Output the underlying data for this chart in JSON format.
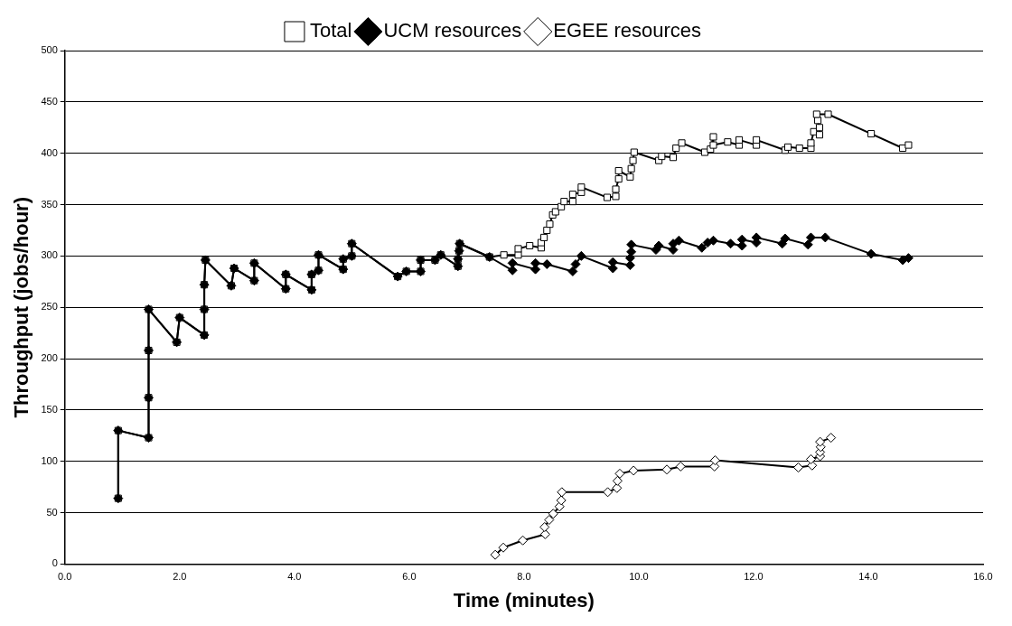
{
  "chart_data": {
    "type": "line",
    "xlabel": "Time (minutes)",
    "ylabel": "Throughput (jobs/hour)",
    "xlim": [
      0,
      16
    ],
    "xticks": [
      {
        "value": 0,
        "label": "0.0"
      },
      {
        "value": 2,
        "label": "2.0"
      },
      {
        "value": 4,
        "label": "4.0"
      },
      {
        "value": 6,
        "label": "6.0"
      },
      {
        "value": 8,
        "label": "8.0"
      },
      {
        "value": 10,
        "label": "10.0"
      },
      {
        "value": 12,
        "label": "12.0"
      },
      {
        "value": 14,
        "label": "14.0"
      },
      {
        "value": 16,
        "label": "16.0"
      }
    ],
    "ylim": [
      0,
      500
    ],
    "yticks": [
      0,
      50,
      100,
      150,
      200,
      250,
      300,
      350,
      400,
      450,
      500
    ],
    "grid": "y",
    "legend": "top",
    "line_style": "solid",
    "series": [
      {
        "name": "Total",
        "color": "#000000",
        "marker": "square",
        "x": [
          0.93,
          0.93,
          1.46,
          1.46,
          1.46,
          1.46,
          1.95,
          2.0,
          2.43,
          2.43,
          2.43,
          2.45,
          2.9,
          2.95,
          3.3,
          3.3,
          3.85,
          3.85,
          4.3,
          4.3,
          4.42,
          4.42,
          4.85,
          4.85,
          5.0,
          5.0,
          5.8,
          5.95,
          6.2,
          6.2,
          6.45,
          6.55,
          6.85,
          6.85,
          6.87,
          6.88,
          7.4,
          7.65,
          7.9,
          7.9,
          8.1,
          8.3,
          8.3,
          8.35,
          8.4,
          8.45,
          8.5,
          8.55,
          8.65,
          8.7,
          8.85,
          8.85,
          9.0,
          9.0,
          9.45,
          9.6,
          9.6,
          9.65,
          9.65,
          9.85,
          9.87,
          9.9,
          9.92,
          10.35,
          10.4,
          10.6,
          10.65,
          10.75,
          11.15,
          11.25,
          11.3,
          11.3,
          11.55,
          11.75,
          11.75,
          12.05,
          12.05,
          12.55,
          12.6,
          12.8,
          13.0,
          13.0,
          13.05,
          13.15,
          13.15,
          13.12,
          13.1,
          13.3,
          14.05,
          14.6,
          14.7
        ],
        "values": [
          64,
          130,
          123,
          162,
          208,
          248,
          216,
          240,
          223,
          248,
          272,
          296,
          271,
          288,
          276,
          293,
          268,
          282,
          267,
          282,
          286,
          301,
          287,
          297,
          300,
          312,
          280,
          285,
          285,
          296,
          296,
          301,
          290,
          297,
          305,
          312,
          299,
          301,
          301,
          307,
          310,
          308,
          313,
          318,
          325,
          331,
          340,
          343,
          348,
          353,
          353,
          360,
          362,
          367,
          357,
          358,
          365,
          375,
          383,
          377,
          385,
          393,
          401,
          393,
          397,
          396,
          405,
          410,
          401,
          404,
          416,
          408,
          411,
          408,
          413,
          408,
          413,
          403,
          406,
          405,
          405,
          410,
          421,
          418,
          425,
          432,
          438,
          438,
          419,
          405,
          408
        ]
      },
      {
        "name": "UCM resources",
        "color": "#000000",
        "marker": "diamond",
        "x": [
          0.93,
          0.93,
          1.46,
          1.46,
          1.46,
          1.46,
          1.95,
          2.0,
          2.43,
          2.43,
          2.43,
          2.45,
          2.9,
          2.95,
          3.3,
          3.3,
          3.85,
          3.85,
          4.3,
          4.3,
          4.42,
          4.42,
          4.85,
          4.85,
          5.0,
          5.0,
          5.8,
          5.95,
          6.2,
          6.2,
          6.45,
          6.55,
          6.85,
          6.85,
          6.87,
          6.88,
          7.4,
          7.8,
          7.8,
          8.2,
          8.2,
          8.4,
          8.85,
          8.9,
          9.0,
          9.55,
          9.55,
          9.85,
          9.85,
          9.87,
          9.87,
          10.3,
          10.35,
          10.6,
          10.6,
          10.7,
          11.1,
          11.2,
          11.3,
          11.6,
          11.8,
          11.8,
          12.05,
          12.05,
          12.5,
          12.55,
          12.95,
          13.0,
          13.25,
          14.05,
          14.6,
          14.7
        ],
        "values": [
          64,
          130,
          123,
          162,
          208,
          248,
          216,
          240,
          223,
          248,
          272,
          296,
          271,
          288,
          276,
          293,
          268,
          282,
          267,
          282,
          286,
          301,
          287,
          297,
          300,
          312,
          280,
          285,
          285,
          296,
          296,
          301,
          290,
          297,
          305,
          312,
          299,
          286,
          293,
          287,
          293,
          292,
          285,
          292,
          300,
          288,
          294,
          291,
          298,
          304,
          311,
          306,
          310,
          306,
          312,
          315,
          308,
          313,
          315,
          312,
          310,
          316,
          313,
          318,
          312,
          317,
          311,
          318,
          318,
          302,
          296,
          298
        ]
      },
      {
        "name": "EGEE resources",
        "color": "#000000",
        "marker": "diamond-open",
        "x": [
          7.5,
          7.64,
          7.98,
          8.37,
          8.36,
          8.44,
          8.51,
          8.62,
          8.65,
          8.66,
          9.46,
          9.62,
          9.63,
          9.67,
          9.91,
          10.49,
          10.73,
          11.32,
          11.33,
          12.78,
          13.02,
          13.0,
          13.16,
          13.16,
          13.17,
          13.16,
          13.35
        ],
        "values": [
          9,
          16,
          23,
          29,
          36,
          43,
          49,
          56,
          62,
          70,
          70,
          74,
          81,
          88,
          91,
          92,
          95,
          95,
          101,
          94,
          96,
          102,
          105,
          109,
          114,
          119,
          123
        ]
      }
    ]
  }
}
